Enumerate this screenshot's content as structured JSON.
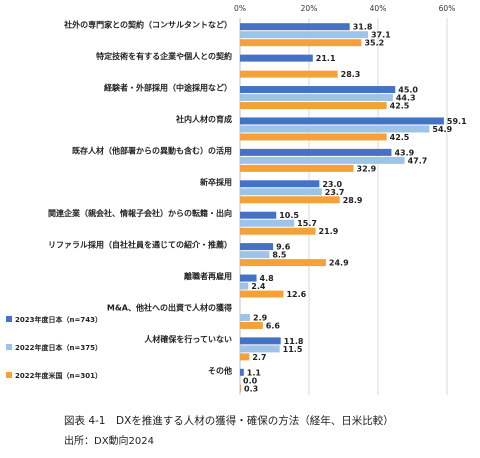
{
  "chart_data": {
    "type": "bar",
    "orientation": "horizontal",
    "xlim": [
      0,
      60
    ],
    "x_ticks": [
      "0%",
      "20%",
      "40%",
      "60%"
    ],
    "grid": true,
    "legend_position": "bottom-left",
    "categories": [
      "社外の専門家との契約（コンサルタントなど）",
      "特定技術を有する企業や個人との契約",
      "経験者・外部採用（中途採用など）",
      "社内人材の育成",
      "既存人材（他部署からの異動も含む）の活用",
      "新卒採用",
      "関連企業（親会社、情報子会社）からの転籍・出向",
      "リファラル採用（自社社員を通じての紹介・推薦）",
      "離職者再雇用",
      "M&A、他社への出資で人材の獲得",
      "人材確保を行っていない",
      "その他"
    ],
    "series": [
      {
        "name": "2023年度日本（n=743）",
        "color": "#4472C4",
        "values": [
          31.8,
          21.1,
          45.0,
          59.1,
          43.9,
          23.0,
          10.5,
          9.6,
          4.8,
          0.0,
          11.8,
          1.1
        ]
      },
      {
        "name": "2022年度日本（n=375）",
        "color": "#9DC3E6",
        "values": [
          37.1,
          0.0,
          44.3,
          54.9,
          47.7,
          23.7,
          15.7,
          8.5,
          2.4,
          2.9,
          11.5,
          0.0
        ]
      },
      {
        "name": "2022年度米国（n=301）",
        "color": "#F4A139",
        "values": [
          35.2,
          28.3,
          42.5,
          42.5,
          32.9,
          28.9,
          21.9,
          24.9,
          12.6,
          6.6,
          2.7,
          0.3
        ]
      }
    ],
    "value_labels": [
      [
        "31.8",
        "21.1",
        "45.0",
        "59.1",
        "43.9",
        "23.0",
        "10.5",
        "9.6",
        "4.8",
        "",
        "11.8",
        "1.1"
      ],
      [
        "37.1",
        "",
        "44.3",
        "54.9",
        "47.7",
        "23.7",
        "15.7",
        "8.5",
        "2.4",
        "2.9",
        "11.5",
        "0.0"
      ],
      [
        "35.2",
        "28.3",
        "42.5",
        "42.5",
        "32.9",
        "28.9",
        "21.9",
        "24.9",
        "12.6",
        "6.6",
        "2.7",
        "0.3"
      ]
    ]
  },
  "caption": {
    "title": "図表 4-1　DXを推進する人材の獲得・確保の方法（経年、日米比較）",
    "source": "出所：DX動向2024"
  }
}
